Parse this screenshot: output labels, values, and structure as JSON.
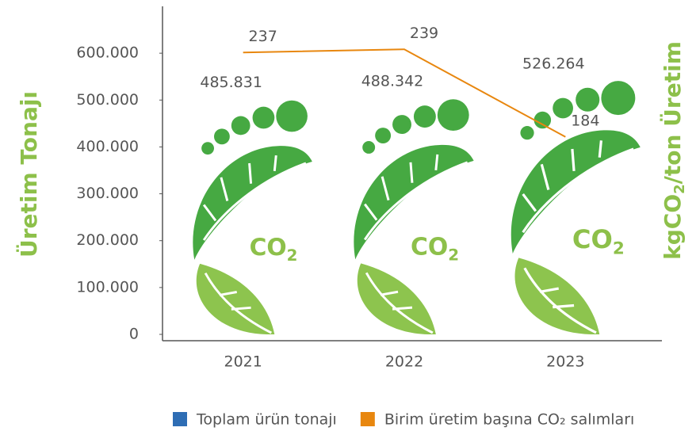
{
  "chart_data": {
    "type": "bar-line",
    "ylabel": "Üretim Tonajı",
    "y2label": [
      "kgCO",
      "2",
      "/ton Üretim"
    ],
    "categories": [
      "2021",
      "2022",
      "2023"
    ],
    "series": [
      {
        "name": "Toplam ürün tonajı",
        "color": "#2e6db4",
        "type": "bar",
        "values": [
          485831,
          488342,
          526264
        ],
        "value_labels": [
          "485.831",
          "488.342",
          "526.264"
        ]
      },
      {
        "name": "Birim üretim başına CO₂ salımları",
        "color": "#e8870f",
        "type": "line",
        "axis": "y2",
        "values": [
          237,
          239,
          184
        ]
      }
    ],
    "pictogram_text": [
      "CO",
      "2"
    ],
    "ylim": [
      0,
      700000
    ],
    "yticks": [
      0,
      {
        "value": 100000,
        "label": "100.000"
      },
      {
        "value": 200000,
        "label": "200.000"
      },
      {
        "value": 300000,
        "label": "300.000"
      },
      {
        "value": 400000,
        "label": "400.000"
      },
      {
        "value": 500000,
        "label": "500.000"
      },
      {
        "value": 600000,
        "label": "600.000"
      }
    ],
    "y2lim": [
      60,
      266
    ],
    "legend": "bottom"
  }
}
